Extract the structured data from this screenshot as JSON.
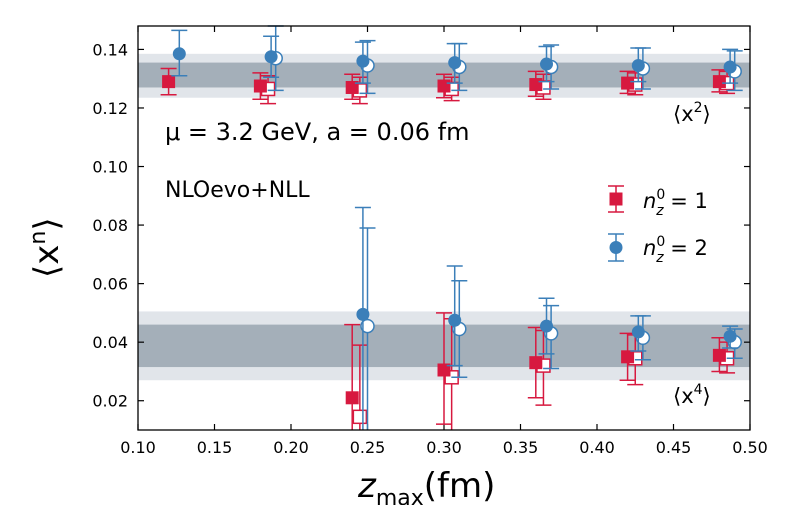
{
  "chart_data": {
    "type": "scatter",
    "xlabel": "z",
    "xlabel_sub": "max",
    "xlabel_unit": "(fm)",
    "ylabel_main": "⟨x",
    "ylabel_sup": "n",
    "ylabel_close": "⟩",
    "xlim": [
      0.1,
      0.5
    ],
    "ylim": [
      0.01,
      0.148
    ],
    "xticks": [
      "0.10",
      "0.15",
      "0.20",
      "0.25",
      "0.30",
      "0.35",
      "0.40",
      "0.45",
      "0.50"
    ],
    "yticks": [
      "0.02",
      "0.04",
      "0.06",
      "0.08",
      "0.10",
      "0.12",
      "0.14"
    ],
    "annotation_params": "μ = 3.2 GeV, a = 0.06 fm",
    "annotation_method": "NLOevo+NLL",
    "band_labels": [
      {
        "main": "⟨x",
        "sup": "2",
        "close": "⟩"
      },
      {
        "main": "⟨x",
        "sup": "4",
        "close": "⟩"
      }
    ],
    "bands": [
      {
        "name": "x2",
        "outer": [
          0.1235,
          0.1385
        ],
        "inner": [
          0.127,
          0.1355
        ]
      },
      {
        "name": "x4",
        "outer": [
          0.027,
          0.0505
        ],
        "inner": [
          0.0315,
          0.046
        ]
      }
    ],
    "colors": {
      "nz1": "#d7193f",
      "nz2": "#3b7fb9",
      "band_outer": "#e1e5ea",
      "band_inner": "#a4afb9"
    },
    "legend": [
      {
        "label": "n",
        "sup": "0",
        "sub": "z",
        "rest": " = 1",
        "marker": "square",
        "series": "nz1"
      },
      {
        "label": "n",
        "sup": "0",
        "sub": "z",
        "rest": " = 2",
        "marker": "circle",
        "series": "nz2"
      }
    ],
    "series": [
      {
        "name": "n_z^0 = 1",
        "color_key": "nz1",
        "marker": "square",
        "filled": [
          {
            "x": 0.12,
            "y": 0.129,
            "lo": 0.1245,
            "hi": 0.1335
          },
          {
            "x": 0.18,
            "y": 0.1275,
            "lo": 0.123,
            "hi": 0.132
          },
          {
            "x": 0.24,
            "y": 0.127,
            "lo": 0.123,
            "hi": 0.1315
          },
          {
            "x": 0.3,
            "y": 0.1275,
            "lo": 0.1235,
            "hi": 0.1315
          },
          {
            "x": 0.36,
            "y": 0.128,
            "lo": 0.124,
            "hi": 0.1325
          },
          {
            "x": 0.42,
            "y": 0.1285,
            "lo": 0.125,
            "hi": 0.1325
          },
          {
            "x": 0.48,
            "y": 0.129,
            "lo": 0.1255,
            "hi": 0.133
          },
          {
            "x": 0.24,
            "y": 0.021,
            "lo": 0.01,
            "hi": 0.046
          },
          {
            "x": 0.3,
            "y": 0.0305,
            "lo": 0.012,
            "hi": 0.05
          },
          {
            "x": 0.36,
            "y": 0.033,
            "lo": 0.021,
            "hi": 0.045
          },
          {
            "x": 0.42,
            "y": 0.035,
            "lo": 0.027,
            "hi": 0.043
          },
          {
            "x": 0.48,
            "y": 0.0355,
            "lo": 0.03,
            "hi": 0.0415
          }
        ],
        "open": [
          {
            "x": 0.185,
            "y": 0.1265,
            "lo": 0.1215,
            "hi": 0.131
          },
          {
            "x": 0.245,
            "y": 0.126,
            "lo": 0.1215,
            "hi": 0.1305
          },
          {
            "x": 0.305,
            "y": 0.1265,
            "lo": 0.1225,
            "hi": 0.1305
          },
          {
            "x": 0.365,
            "y": 0.127,
            "lo": 0.123,
            "hi": 0.1315
          },
          {
            "x": 0.425,
            "y": 0.128,
            "lo": 0.1245,
            "hi": 0.132
          },
          {
            "x": 0.485,
            "y": 0.1285,
            "lo": 0.125,
            "hi": 0.1325
          },
          {
            "x": 0.245,
            "y": 0.0145,
            "lo": 0.01,
            "hi": 0.039
          },
          {
            "x": 0.305,
            "y": 0.028,
            "lo": 0.01,
            "hi": 0.048
          },
          {
            "x": 0.365,
            "y": 0.032,
            "lo": 0.0185,
            "hi": 0.044
          },
          {
            "x": 0.425,
            "y": 0.0345,
            "lo": 0.0255,
            "hi": 0.0425
          },
          {
            "x": 0.485,
            "y": 0.0345,
            "lo": 0.0295,
            "hi": 0.04
          }
        ]
      },
      {
        "name": "n_z^0 = 2",
        "color_key": "nz2",
        "marker": "circle",
        "filled": [
          {
            "x": 0.127,
            "y": 0.1385,
            "lo": 0.131,
            "hi": 0.1465
          },
          {
            "x": 0.187,
            "y": 0.1375,
            "lo": 0.1305,
            "hi": 0.1445
          },
          {
            "x": 0.247,
            "y": 0.136,
            "lo": 0.1285,
            "hi": 0.1425
          },
          {
            "x": 0.307,
            "y": 0.1355,
            "lo": 0.1285,
            "hi": 0.142
          },
          {
            "x": 0.367,
            "y": 0.135,
            "lo": 0.129,
            "hi": 0.141
          },
          {
            "x": 0.427,
            "y": 0.1345,
            "lo": 0.129,
            "hi": 0.1405
          },
          {
            "x": 0.487,
            "y": 0.134,
            "lo": 0.1285,
            "hi": 0.14
          },
          {
            "x": 0.247,
            "y": 0.0495,
            "lo": 0.01,
            "hi": 0.086
          },
          {
            "x": 0.307,
            "y": 0.0475,
            "lo": 0.032,
            "hi": 0.066
          },
          {
            "x": 0.367,
            "y": 0.0455,
            "lo": 0.036,
            "hi": 0.055
          },
          {
            "x": 0.427,
            "y": 0.0435,
            "lo": 0.037,
            "hi": 0.049
          },
          {
            "x": 0.487,
            "y": 0.042,
            "lo": 0.038,
            "hi": 0.0455
          }
        ],
        "open": [
          {
            "x": 0.19,
            "y": 0.137,
            "lo": 0.126,
            "hi": 0.148
          },
          {
            "x": 0.25,
            "y": 0.1345,
            "lo": 0.125,
            "hi": 0.143
          },
          {
            "x": 0.31,
            "y": 0.134,
            "lo": 0.126,
            "hi": 0.142
          },
          {
            "x": 0.37,
            "y": 0.134,
            "lo": 0.1265,
            "hi": 0.1415
          },
          {
            "x": 0.43,
            "y": 0.1335,
            "lo": 0.1265,
            "hi": 0.1405
          },
          {
            "x": 0.49,
            "y": 0.1325,
            "lo": 0.126,
            "hi": 0.1395
          },
          {
            "x": 0.25,
            "y": 0.0455,
            "lo": 0.01,
            "hi": 0.079
          },
          {
            "x": 0.31,
            "y": 0.0445,
            "lo": 0.028,
            "hi": 0.061
          },
          {
            "x": 0.37,
            "y": 0.043,
            "lo": 0.031,
            "hi": 0.0525
          },
          {
            "x": 0.43,
            "y": 0.0415,
            "lo": 0.034,
            "hi": 0.049
          },
          {
            "x": 0.49,
            "y": 0.04,
            "lo": 0.0345,
            "hi": 0.0445
          }
        ]
      }
    ]
  }
}
